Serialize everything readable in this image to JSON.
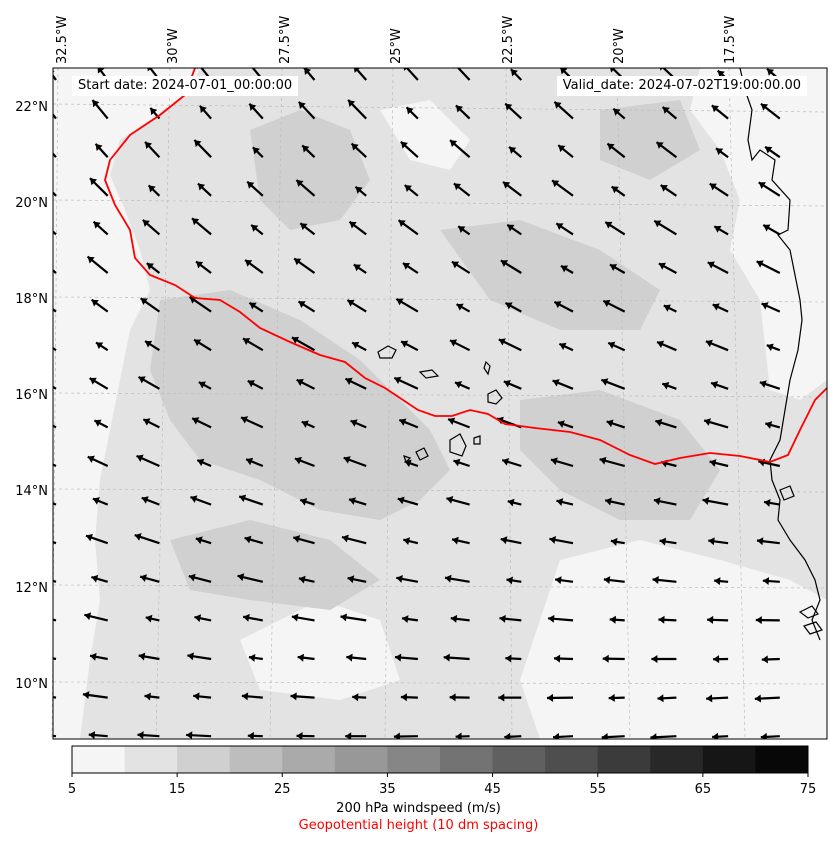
{
  "header": {
    "start_date": "Start date: 2024-07-01_00:00:00",
    "valid_date": "Valid_date: 2024-07-02T19:00:00.00"
  },
  "map": {
    "lon_labels": [
      "32.5°W",
      "30°W",
      "27.5°W",
      "25°W",
      "22.5°W",
      "20°W",
      "17.5°W"
    ],
    "lat_labels": [
      "22°N",
      "20°N",
      "18°N",
      "16°N",
      "14°N",
      "12°N",
      "10°N"
    ],
    "wind_arrow_color": "#000000",
    "coastline_color": "#000000",
    "contour_color": "#ff0000"
  },
  "colorbar": {
    "ticks": [
      "5",
      "15",
      "25",
      "35",
      "45",
      "55",
      "65",
      "75"
    ],
    "colors": [
      "#f5f5f5",
      "#e3e3e3",
      "#d0d0d0",
      "#bdbdbd",
      "#aaaaaa",
      "#989898",
      "#868686",
      "#737373",
      "#606060",
      "#4e4e4e",
      "#3b3b3b",
      "#282828",
      "#161616",
      "#080808"
    ],
    "title": "200 hPa windspeed (m/s)",
    "subtitle": "Geopotential height (10 dm spacing)",
    "subtitle_color": "#ff0000"
  }
}
